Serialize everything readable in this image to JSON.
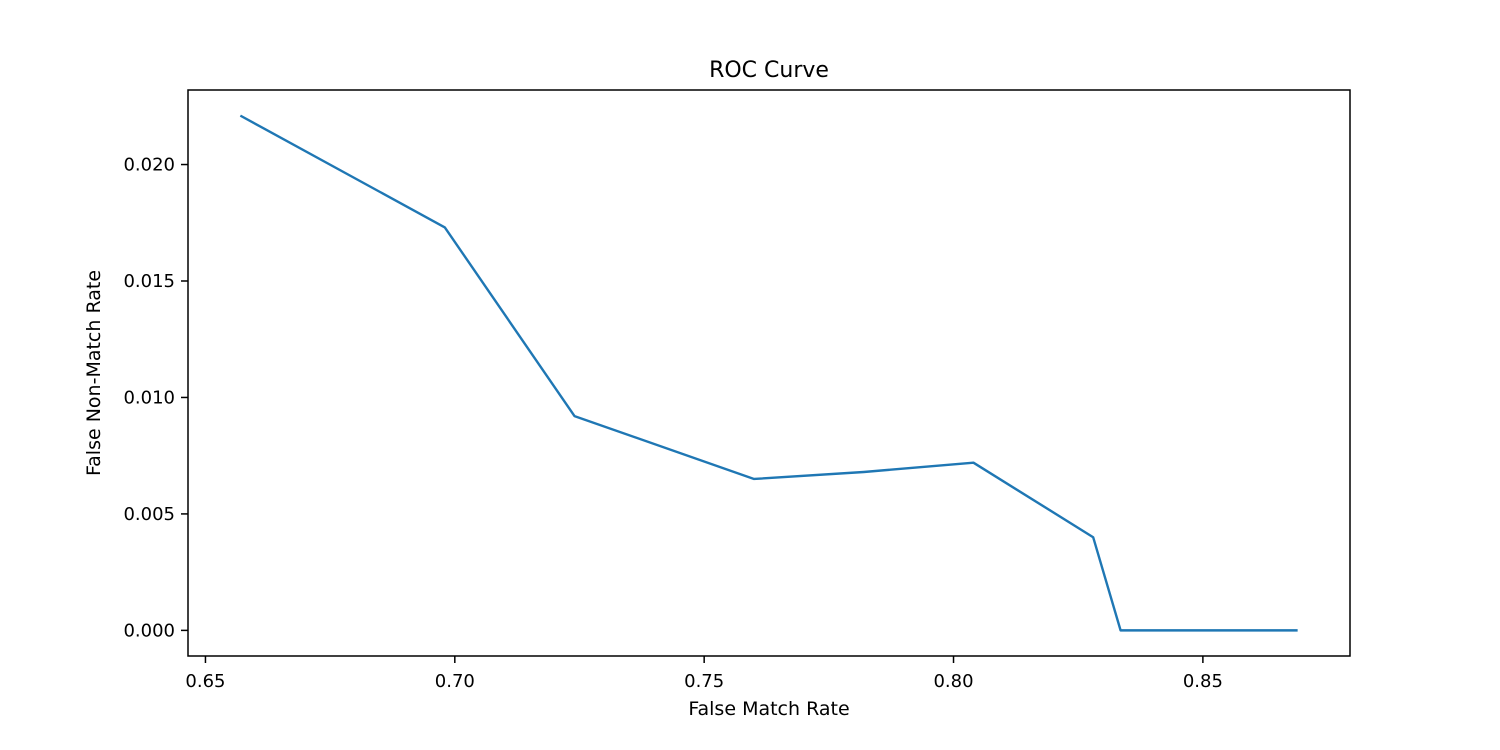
{
  "chart_data": {
    "type": "line",
    "title": "ROC Curve",
    "xlabel": "False Match Rate",
    "ylabel": "False Non-Match Rate",
    "xlim": [
      0.6465,
      0.8795
    ],
    "ylim": [
      -0.0011,
      0.0232
    ],
    "xticks": [
      0.65,
      0.7,
      0.75,
      0.8,
      0.85
    ],
    "xtick_labels": [
      "0.65",
      "0.70",
      "0.75",
      "0.80",
      "0.85"
    ],
    "yticks": [
      0.0,
      0.005,
      0.01,
      0.015,
      0.02
    ],
    "ytick_labels": [
      "0.000",
      "0.005",
      "0.010",
      "0.015",
      "0.020"
    ],
    "grid": false,
    "series": [
      {
        "color": "#1f77b4",
        "x": [
          0.657,
          0.698,
          0.724,
          0.76,
          0.782,
          0.804,
          0.828,
          0.8335,
          0.869
        ],
        "y": [
          0.0221,
          0.0173,
          0.0092,
          0.0065,
          0.0068,
          0.0072,
          0.004,
          0.0,
          0.0
        ]
      }
    ]
  }
}
